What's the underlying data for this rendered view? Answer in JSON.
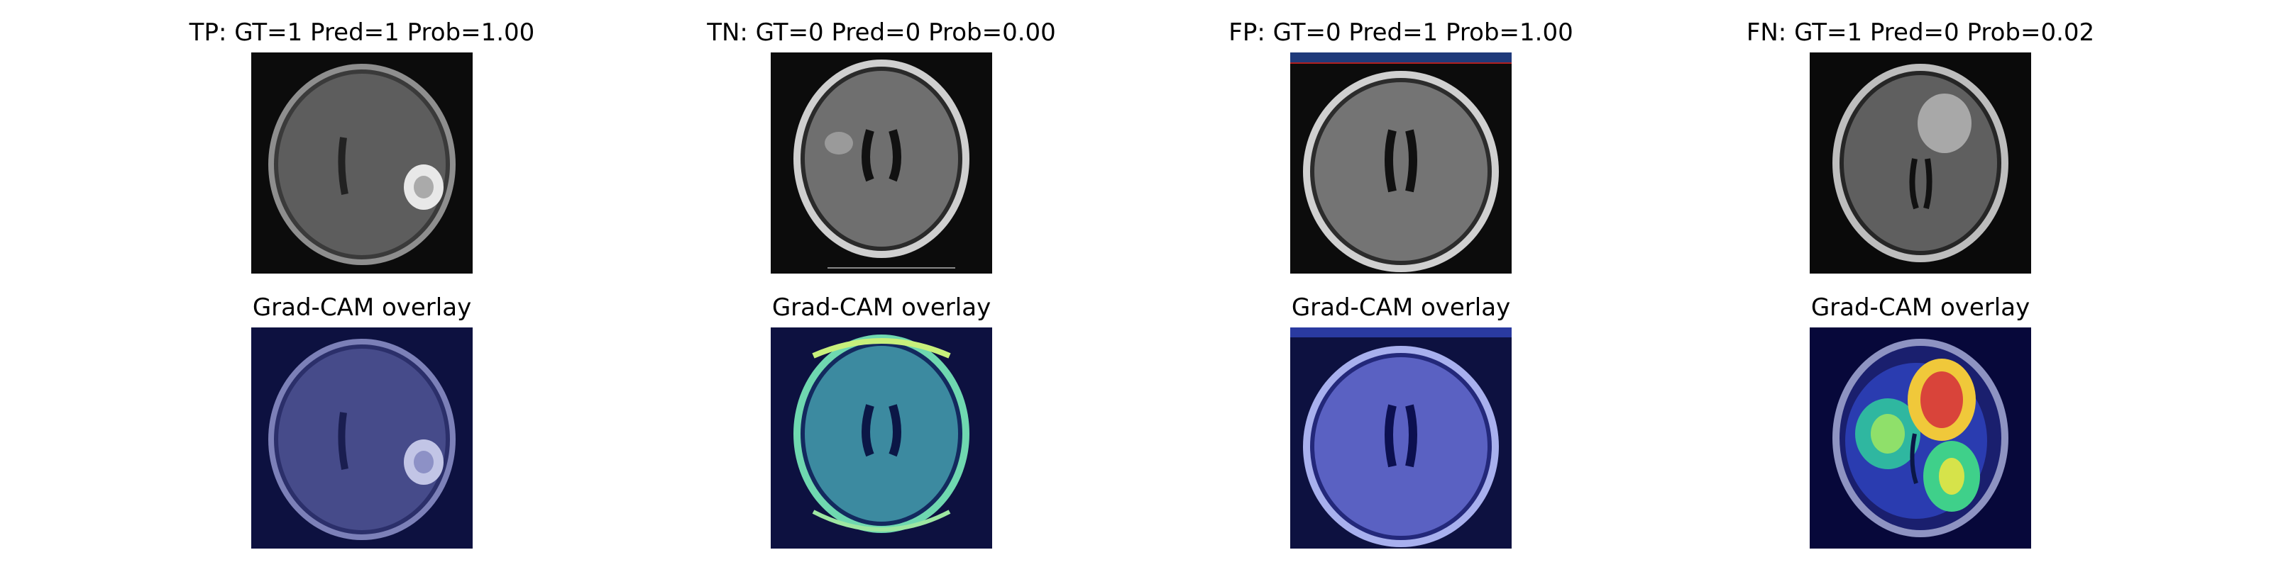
{
  "figure": {
    "background": "#ffffff",
    "panels": [
      {
        "title": "TP: GT=1 Pred=1 Prob=1.00",
        "overlay_title": "Grad-CAM overlay",
        "image": "brain-mri-axial-tumor"
      },
      {
        "title": "TN: GT=0 Pred=0 Prob=0.00",
        "overlay_title": "Grad-CAM overlay",
        "image": "brain-mri-axial-flair"
      },
      {
        "title": "FP: GT=0 Pred=1 Prob=1.00",
        "overlay_title": "Grad-CAM overlay",
        "image": "brain-mri-axial-medscape"
      },
      {
        "title": "FN: GT=1 Pred=0 Prob=0.02",
        "overlay_title": "Grad-CAM overlay",
        "image": "brain-mri-axial-frontal-lesion"
      }
    ],
    "colors": {
      "overlay_base": "#1a1f6e",
      "heat_low": "#2a3cb0",
      "heat_mid": "#3fd08a",
      "heat_high": "#d9443a"
    }
  }
}
